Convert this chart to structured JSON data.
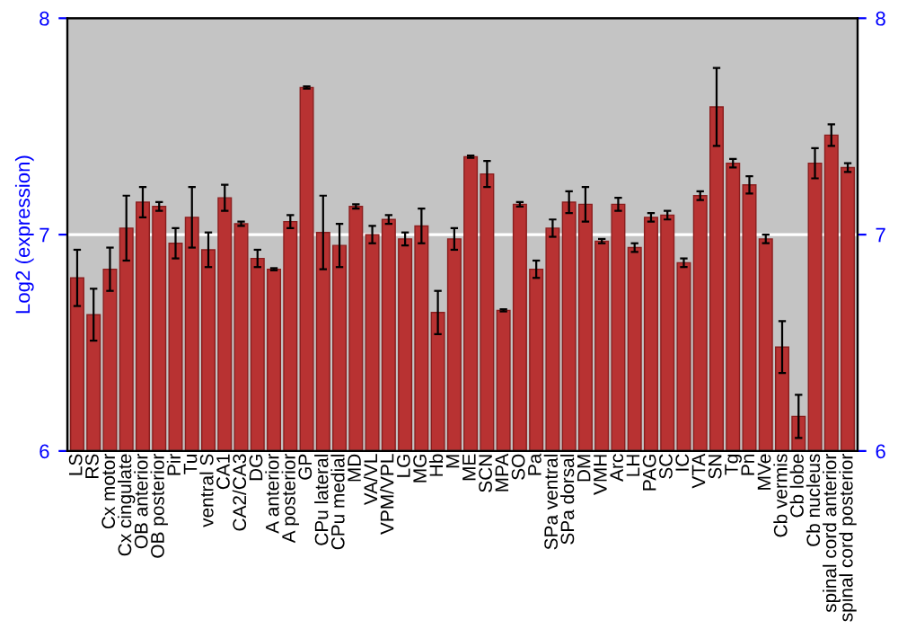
{
  "chart_data": {
    "type": "bar",
    "ylabel": "Log2 (expression)",
    "categories": [
      "LS",
      "RS",
      "Cx motor",
      "Cx cingulate",
      "OB anterior",
      "OB posterior",
      "Pir",
      "Tu",
      "ventral S",
      "CA1",
      "CA2/CA3",
      "DG",
      "A anterior",
      "A posterior",
      "GP",
      "CPu lateral",
      "CPu medial",
      "MD",
      "VA/VL",
      "VPM/VPL",
      "LG",
      "MG",
      "Hb",
      "M",
      "ME",
      "SCN",
      "MPA",
      "SO",
      "Pa",
      "SPa ventral",
      "SPa dorsal",
      "DM",
      "VMH",
      "Arc",
      "LH",
      "PAG",
      "SC",
      "IC",
      "VTA",
      "SN",
      "Tg",
      "Pn",
      "MVe",
      "Cb vermis",
      "Cb lobe",
      "Cb nucleus",
      "spinal cord anterior",
      "spinal cord posterior"
    ],
    "values": [
      6.8,
      6.63,
      6.84,
      7.03,
      7.15,
      7.13,
      6.96,
      7.08,
      6.93,
      7.17,
      7.05,
      6.89,
      6.84,
      7.06,
      7.68,
      7.01,
      6.95,
      7.13,
      7.0,
      7.07,
      6.98,
      7.04,
      6.64,
      6.98,
      7.36,
      7.28,
      6.65,
      7.14,
      6.84,
      7.03,
      7.15,
      7.14,
      6.97,
      7.14,
      6.94,
      7.08,
      7.09,
      6.87,
      7.18,
      7.59,
      7.33,
      7.23,
      6.98,
      6.48,
      6.16,
      7.33,
      7.46,
      7.31
    ],
    "errors": [
      0.13,
      0.12,
      0.1,
      0.15,
      0.07,
      0.02,
      0.07,
      0.14,
      0.08,
      0.06,
      0.01,
      0.04,
      0.005,
      0.03,
      0.005,
      0.17,
      0.1,
      0.01,
      0.04,
      0.02,
      0.03,
      0.08,
      0.1,
      0.05,
      0.005,
      0.06,
      0.005,
      0.01,
      0.04,
      0.04,
      0.05,
      0.08,
      0.01,
      0.03,
      0.02,
      0.02,
      0.02,
      0.02,
      0.02,
      0.18,
      0.02,
      0.04,
      0.02,
      0.12,
      0.1,
      0.07,
      0.05,
      0.02
    ],
    "color": "#b83232",
    "ylim": [
      6,
      8
    ],
    "yticks": [
      6,
      7,
      8
    ],
    "y2lim": [
      6,
      8
    ],
    "y2ticks": [
      6,
      7,
      8
    ],
    "grid": "y"
  }
}
